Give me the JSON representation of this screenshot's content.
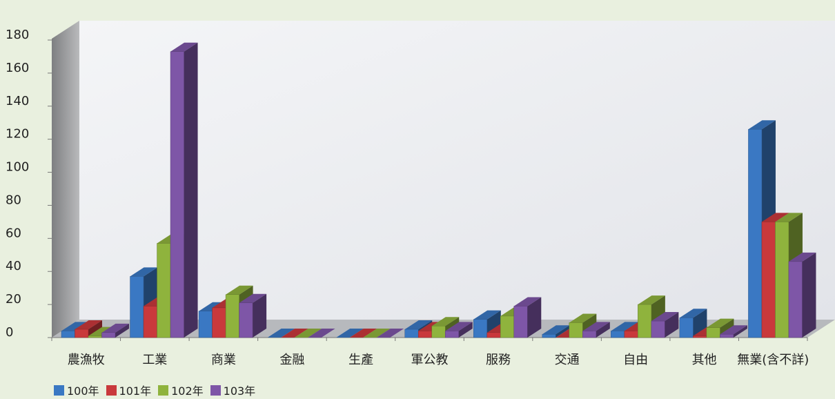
{
  "chart_data": {
    "type": "bar",
    "title": "",
    "xlabel": "",
    "ylabel": "",
    "ylim": [
      0,
      180
    ],
    "yticks": [
      0,
      20,
      40,
      60,
      80,
      100,
      120,
      140,
      160,
      180
    ],
    "categories": [
      "農漁牧",
      "工業",
      "商業",
      "金融",
      "生產",
      "軍公教",
      "服務",
      "交通",
      "自由",
      "其他",
      "無業(含不詳)"
    ],
    "series": [
      {
        "name": "100年",
        "color": "#3a78c3",
        "values": [
          4,
          37,
          16,
          0,
          0,
          5,
          11,
          2,
          4,
          12,
          126
        ]
      },
      {
        "name": "101年",
        "color": "#c9393c",
        "values": [
          5,
          19,
          18,
          0,
          0,
          4,
          3,
          0,
          4,
          1,
          70
        ]
      },
      {
        "name": "102年",
        "color": "#8fb33d",
        "values": [
          1,
          57,
          26,
          0,
          0,
          7,
          13,
          9,
          20,
          6,
          70
        ]
      },
      {
        "name": "103年",
        "color": "#7e56a7",
        "values": [
          3,
          173,
          21,
          0,
          0,
          4,
          19,
          4,
          10,
          2,
          46
        ]
      }
    ],
    "grid": false,
    "legend_position": "bottom-left",
    "chart_style": "3d-clustered-column"
  }
}
